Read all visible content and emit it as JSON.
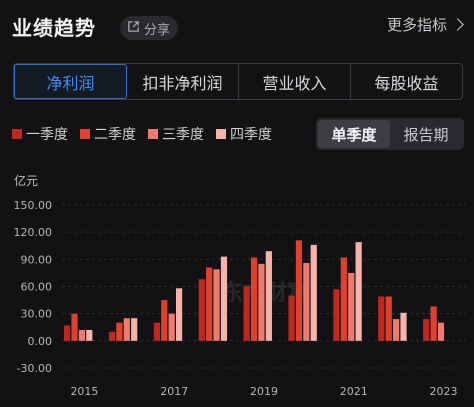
{
  "header": {
    "title": "业绩趋势",
    "share_label": "分享",
    "more_label": "更多指标"
  },
  "tabs": [
    {
      "label": "净利润",
      "active": true
    },
    {
      "label": "扣非净利润",
      "active": false
    },
    {
      "label": "营业收入",
      "active": false
    },
    {
      "label": "每股收益",
      "active": false
    }
  ],
  "legend": [
    {
      "label": "一季度",
      "color": "#c0281f"
    },
    {
      "label": "二季度",
      "color": "#e0402e"
    },
    {
      "label": "三季度",
      "color": "#ee7b6d"
    },
    {
      "label": "四季度",
      "color": "#f6b3aa"
    }
  ],
  "toggle": {
    "single_quarter": "单季度",
    "report_period": "报告期",
    "active": "single_quarter"
  },
  "watermark": "东方财富",
  "chart_data": {
    "type": "bar",
    "ylabel": "亿元",
    "ylim": [
      -30,
      150
    ],
    "yticks": [
      "150.00",
      "120.00",
      "90.00",
      "60.00",
      "30.00",
      "0.00",
      "-30.00"
    ],
    "ytick_values": [
      150,
      120,
      90,
      60,
      30,
      0,
      -30
    ],
    "xtick_labels": [
      "2015",
      "2017",
      "2019",
      "2021",
      "2023"
    ],
    "grid": true,
    "years": [
      2015,
      2016,
      2017,
      2018,
      2019,
      2020,
      2021,
      2022,
      2023
    ],
    "series": [
      {
        "name": "一季度",
        "values": [
          17,
          10,
          20,
          68,
          60,
          50,
          57,
          49,
          24
        ]
      },
      {
        "name": "二季度",
        "values": [
          30,
          20,
          45,
          81,
          92,
          111,
          92,
          49,
          38
        ]
      },
      {
        "name": "三季度",
        "values": [
          12,
          25,
          30,
          79,
          85,
          86,
          75,
          24,
          20
        ]
      },
      {
        "name": "四季度",
        "values": [
          12,
          25,
          58,
          93,
          99,
          106,
          109,
          31,
          null
        ]
      }
    ]
  }
}
